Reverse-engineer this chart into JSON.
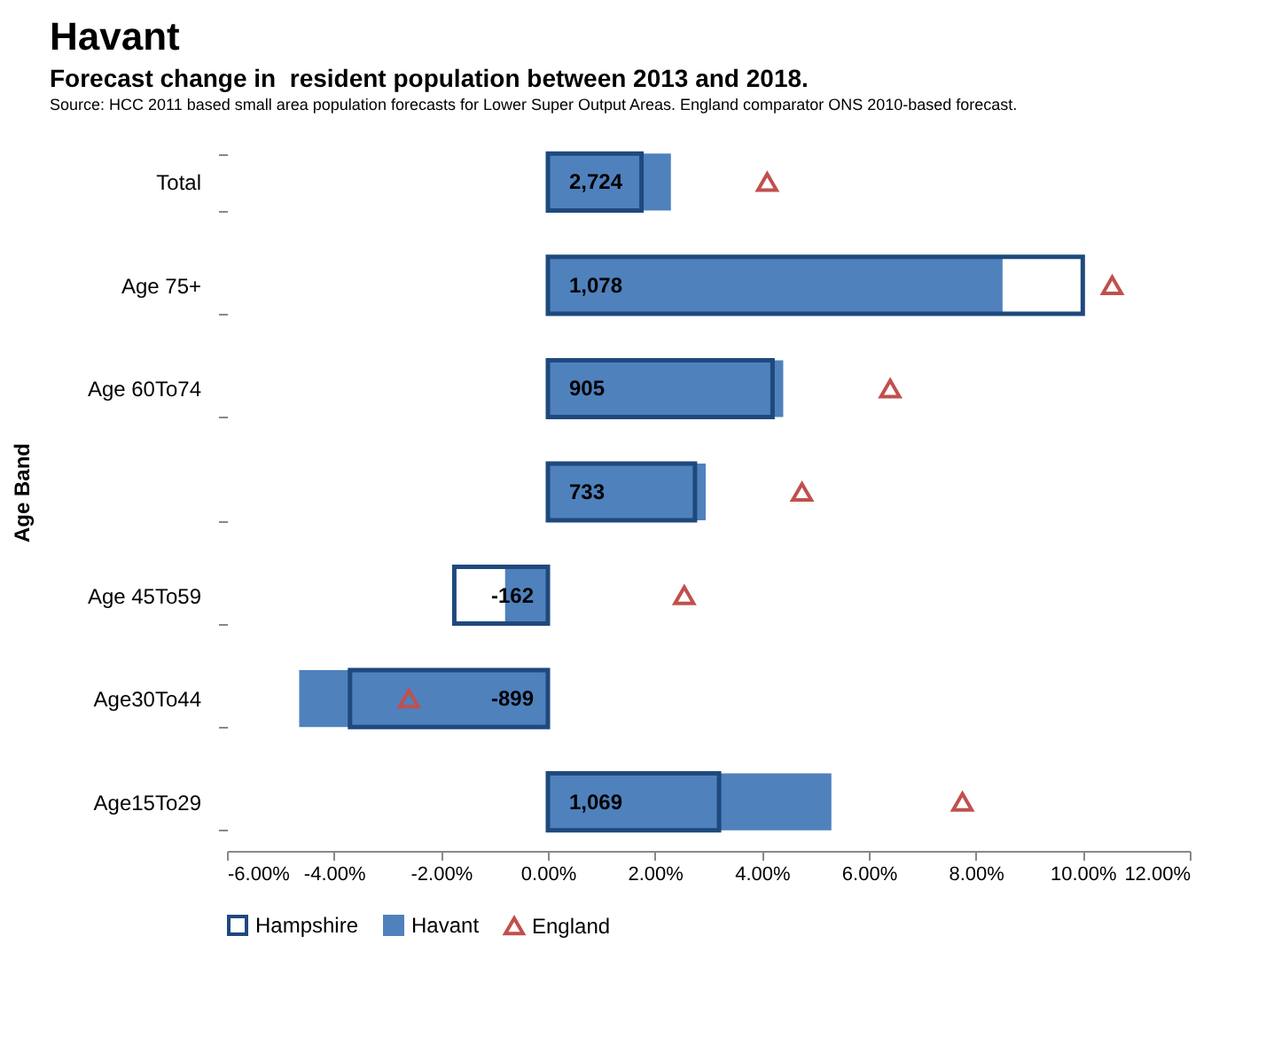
{
  "chart_data": {
    "type": "bar",
    "orientation": "horizontal",
    "title": "Havant",
    "subtitle": "Forecast change in  resident population between 2013 and 2018.",
    "annotations": [
      "Source: HCC 2011 based small area population forecasts for Lower Super Output Areas. England comparator ONS 2010-based forecast.",
      "2,724",
      "1,078",
      "905",
      "733",
      "-162",
      "-899",
      "1,069"
    ],
    "ylabel": "Age Band",
    "categories": [
      "Total",
      "Age 75+",
      "Age 60To74",
      null,
      "Age 45To59",
      "Age30To44",
      "Age15To29"
    ],
    "series": [
      {
        "name": "Hampshire",
        "color": "#1f497d",
        "values": [
          1.75,
          10.0,
          4.2,
          2.75,
          -1.75,
          -3.7,
          3.2
        ]
      },
      {
        "name": "Havant",
        "color": "#4f81bd",
        "values": [
          2.3,
          8.5,
          4.4,
          2.95,
          -0.8,
          -4.65,
          5.3
        ]
      },
      {
        "name": "England",
        "type": "scatter",
        "marker": "triangle",
        "color": "#c0504d",
        "values": [
          4.1,
          10.55,
          6.4,
          4.75,
          2.55,
          -2.6,
          7.75
        ]
      }
    ],
    "xlim": [
      -6,
      12
    ],
    "xticks": [
      {
        "value": -6,
        "label": "-6.00%"
      },
      {
        "value": -4,
        "label": "-4.00%"
      },
      {
        "value": -2,
        "label": "-2.00%"
      },
      {
        "value": 0,
        "label": "0.00%"
      },
      {
        "value": 2,
        "label": "2.00%"
      },
      {
        "value": 4,
        "label": "4.00%"
      },
      {
        "value": 6,
        "label": "6.00%"
      },
      {
        "value": 8,
        "label": "8.00%"
      },
      {
        "value": 10,
        "label": "10.00%"
      },
      {
        "value": 12,
        "label": "12.00%"
      }
    ],
    "legend": "bottom"
  }
}
